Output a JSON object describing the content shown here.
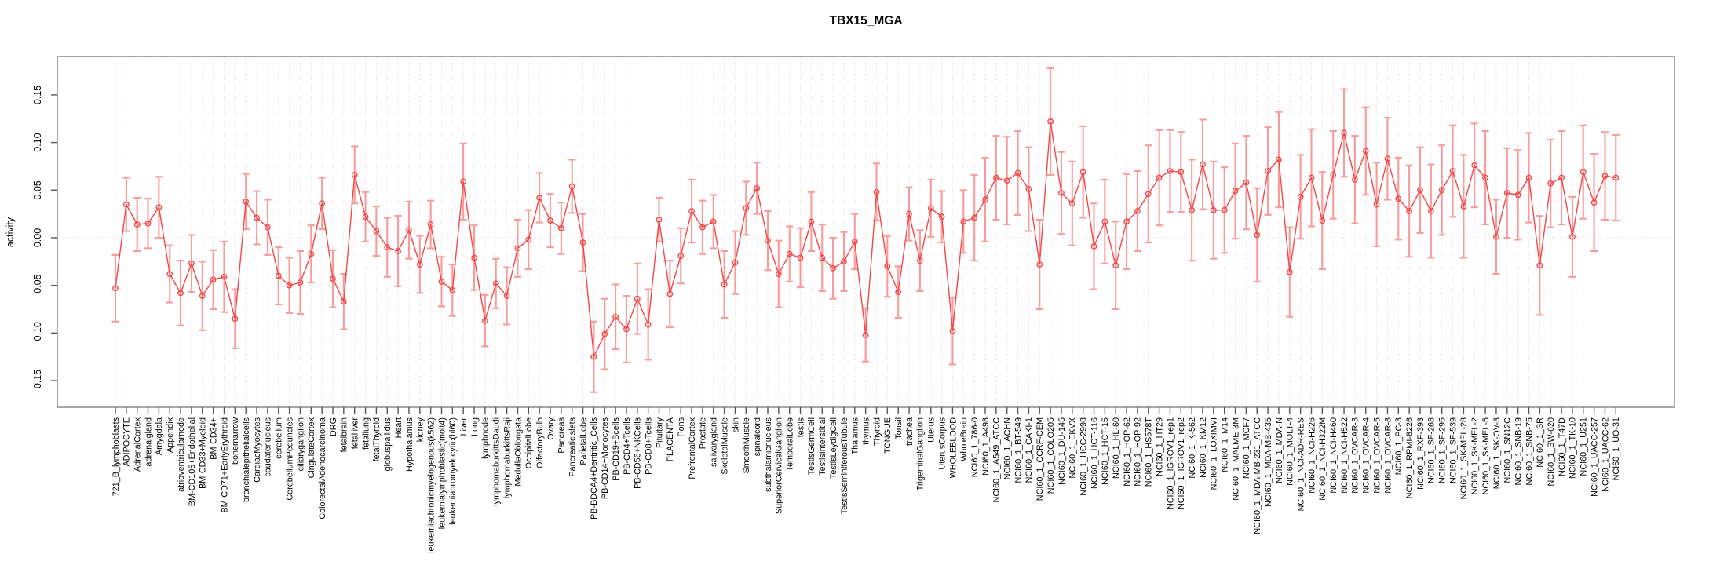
{
  "page": {
    "title": "TBX15_MGA"
  },
  "chart_data": {
    "type": "line",
    "title": "TBX15_MGA",
    "xlabel": "",
    "ylabel": "activity",
    "ylim": [
      -0.178,
      0.19
    ],
    "y_ticks": [
      -0.15,
      -0.1,
      -0.05,
      0.0,
      0.05,
      0.1,
      0.15
    ],
    "grid": "vertical dotted gridline at every category; dotted horizontal line at 0",
    "legend_position": "none",
    "marker": "open-circle",
    "series_color": "#f84545",
    "error_bar_color": "#f89b9b",
    "categories": [
      "721_B_lymphoblasts",
      "ADIPOCYTE",
      "AdrenalCortex",
      "adrenalgland",
      "Amygdala",
      "Appendix",
      "atrioventricularnode",
      "BM-CD105+Endothelial",
      "BM-CD33+Myeloid",
      "BM-CD34+",
      "BM-CD71+EarlyErythroid",
      "bonemarrow",
      "bronchialepithelialcells",
      "CardiacMyocytes",
      "caudatenucleus",
      "cerebellum",
      "CerebellumPeduncles",
      "ciliaryganglion",
      "CingulateCortex",
      "ColorectalAdenocarcinoma",
      "DRG",
      "fetalbrain",
      "fetalliver",
      "fetallung",
      "fetalThyroid",
      "globuspallidus",
      "Heart",
      "Hypothalamus",
      "kidney",
      "leukemiachronicmyelogenous(k562)",
      "leukemialymphoblastic(molt4)",
      "leukemiapromyelocytic(hl60)",
      "Liver",
      "Lung",
      "lymphnode",
      "lymphomaburkittsDaudi",
      "lymphomaburkittsRaji",
      "MedullaOblongata",
      "OccipitalLobe",
      "OlfactoryBulb",
      "Ovary",
      "Pancreas",
      "Pancreaticislets",
      "ParietalLobe",
      "PB-BDCA4+Dentritic_Cells",
      "PB-CD14+Monocytes",
      "PB-CD19+Bcells",
      "PB-CD4+Tcells",
      "PB-CD56+NKCells",
      "PB-CD8+Tcells",
      "Pituitary",
      "PLACENTA",
      "Pons",
      "PrefrontalCortex",
      "Prostate",
      "salivarygland",
      "SkeletalMuscle",
      "skin",
      "SmoothMuscle",
      "spinalcord",
      "subthalamicnucleus",
      "SuperiorCervicalGanglion",
      "TemporalLobe",
      "testis",
      "TestisGermCell",
      "TestisInterstitial",
      "TestisLeydigCell",
      "TestisSeminiferousTubule",
      "Thalamus",
      "thymus",
      "Thyroid",
      "TONGUE",
      "Tonsil",
      "trachea",
      "TrigeminalGanglion",
      "Uterus",
      "UterusCorpus",
      "WHOLEBLOOD",
      "WholeBrain",
      "NCI60_1_786-0",
      "NCI60_1_A498",
      "NCI60_1_A549_ATCC",
      "NCI60_1_ACHN",
      "NCI60_1_BT-549",
      "NCI60_1_CAKI-1",
      "NCI60_1_CCRF-CEM",
      "NCI60_1_COLO205",
      "NCI60_1_DU-145",
      "NCI60_1_EKVX",
      "NCI60_1_HCC-2998",
      "NCI60_1_HCT-116",
      "NCI60_1_HCT-15",
      "NCI60_1_HL-60",
      "NCI60_1_HOP-62",
      "NCI60_1_HOP-92",
      "NCI60_1_HS578T",
      "NCI60_1_HT29",
      "NCI60_1_IGROV1_rep1",
      "NCI60_1_IGROV1_rep2",
      "NCI60_1_K-562",
      "NCI60_1_KM12",
      "NCI60_1_LOXIMVI",
      "NCI60_1_M14",
      "NCI60_1_MALME-3M",
      "NCI60_1_MCF7",
      "NCI60_1_MDA-MB-231_ATCC",
      "NCI60_1_MDA-MB-435",
      "NCI60_1_MDA-N",
      "NCI60_1_MOLT-4",
      "NCI60_1_NCI-ADR-RES",
      "NCI60_1_NCI-H226",
      "NCI60_1_NCI-H322M",
      "NCI60_1_NCI-H460",
      "NCI60_1_NCI-H522",
      "NCI60_1_OVCAR-3",
      "NCI60_1_OVCAR-4",
      "NCI60_1_OVCAR-5",
      "NCI60_1_OVCAR-8",
      "NCI60_1_PC-3",
      "NCI60_1_RPMI-8226",
      "NCI60_1_RXF-393",
      "NCI60_1_SF-268",
      "NCI60_1_SF-295",
      "NCI60_1_SF-539",
      "NCI60_1_SK-MEL-28",
      "NCI60_1_SK-MEL-2",
      "NCI60_1_SK-MEL-5",
      "NCI60_1_SK-OV-3",
      "NCI60_1_SN12C",
      "NCI60_1_SNB-19",
      "NCI60_1_SNB-75",
      "NCI60_1_SR",
      "NCI60_1_SW-620",
      "NCI60_1_T47D",
      "NCI60_1_TK-10",
      "NCI60_1_U251",
      "NCI60_1_UACC-257",
      "NCI60_1_UACC-62",
      "NCI60_1_UO-31"
    ],
    "values": [
      -0.053,
      0.035,
      0.014,
      0.015,
      0.032,
      -0.038,
      -0.058,
      -0.027,
      -0.061,
      -0.044,
      -0.041,
      -0.085,
      0.038,
      0.021,
      0.011,
      -0.04,
      -0.05,
      -0.047,
      -0.017,
      0.036,
      -0.043,
      -0.067,
      0.066,
      0.022,
      0.007,
      -0.01,
      -0.014,
      0.008,
      -0.028,
      0.014,
      -0.046,
      -0.055,
      0.059,
      -0.021,
      -0.087,
      -0.048,
      -0.061,
      -0.011,
      -0.002,
      0.042,
      0.018,
      0.01,
      0.054,
      -0.005,
      -0.125,
      -0.101,
      -0.083,
      -0.096,
      -0.064,
      -0.091,
      0.019,
      -0.059,
      -0.019,
      0.028,
      0.011,
      0.017,
      -0.049,
      -0.026,
      0.031,
      0.052,
      -0.003,
      -0.038,
      -0.017,
      -0.021,
      0.017,
      -0.021,
      -0.032,
      -0.025,
      -0.004,
      -0.102,
      0.048,
      -0.03,
      -0.057,
      0.025,
      -0.024,
      0.031,
      0.022,
      -0.098,
      0.017,
      0.021,
      0.04,
      0.063,
      0.06,
      0.068,
      0.051,
      -0.028,
      0.122,
      0.047,
      0.036,
      0.069,
      -0.009,
      0.017,
      -0.029,
      0.017,
      0.028,
      0.046,
      0.063,
      0.07,
      0.069,
      0.029,
      0.077,
      0.029,
      0.029,
      0.049,
      0.058,
      0.003,
      0.07,
      0.082,
      -0.036,
      0.043,
      0.063,
      0.018,
      0.066,
      0.11,
      0.061,
      0.091,
      0.035,
      0.083,
      0.041,
      0.028,
      0.05,
      0.028,
      0.05,
      0.07,
      0.033,
      0.076,
      0.063,
      0.001,
      0.047,
      0.045,
      0.063,
      -0.029,
      0.057,
      0.063,
      0.001,
      0.069,
      0.037,
      0.065,
      0.063
    ],
    "errors": [
      0.035,
      0.028,
      0.028,
      0.026,
      0.032,
      0.03,
      0.034,
      0.03,
      0.036,
      0.031,
      0.037,
      0.031,
      0.029,
      0.028,
      0.029,
      0.03,
      0.029,
      0.033,
      0.03,
      0.027,
      0.03,
      0.029,
      0.03,
      0.026,
      0.026,
      0.031,
      0.037,
      0.03,
      0.03,
      0.025,
      0.026,
      0.027,
      0.04,
      0.034,
      0.027,
      0.026,
      0.03,
      0.03,
      0.031,
      0.026,
      0.028,
      0.027,
      0.028,
      0.03,
      0.037,
      0.037,
      0.034,
      0.035,
      0.037,
      0.037,
      0.023,
      0.035,
      0.029,
      0.033,
      0.028,
      0.028,
      0.035,
      0.033,
      0.028,
      0.027,
      0.031,
      0.035,
      0.029,
      0.031,
      0.031,
      0.035,
      0.032,
      0.031,
      0.029,
      0.028,
      0.03,
      0.032,
      0.027,
      0.028,
      0.032,
      0.03,
      0.027,
      0.035,
      0.033,
      0.045,
      0.044,
      0.044,
      0.046,
      0.044,
      0.044,
      0.047,
      0.056,
      0.043,
      0.044,
      0.048,
      0.045,
      0.044,
      0.046,
      0.05,
      0.042,
      0.051,
      0.05,
      0.043,
      0.042,
      0.053,
      0.047,
      0.051,
      0.045,
      0.05,
      0.049,
      0.049,
      0.046,
      0.05,
      0.047,
      0.044,
      0.051,
      0.051,
      0.046,
      0.046,
      0.046,
      0.046,
      0.044,
      0.043,
      0.043,
      0.048,
      0.045,
      0.049,
      0.047,
      0.048,
      0.054,
      0.044,
      0.049,
      0.039,
      0.047,
      0.047,
      0.047,
      0.052,
      0.046,
      0.049,
      0.042,
      0.049,
      0.051,
      0.046,
      0.045
    ]
  }
}
